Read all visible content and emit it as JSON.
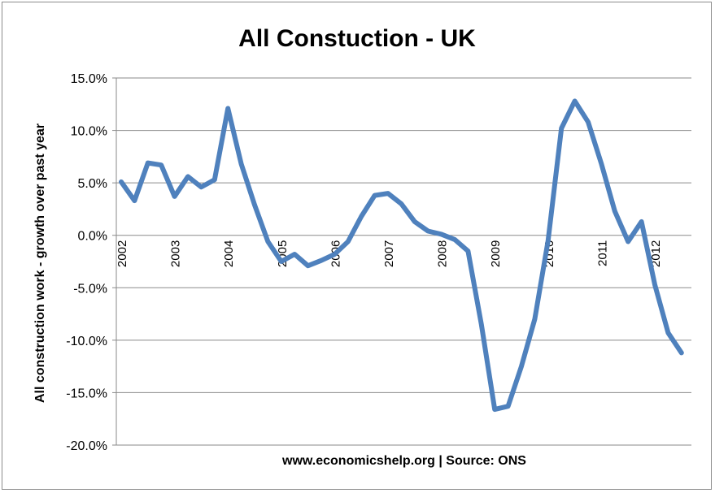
{
  "chart_data": {
    "type": "line",
    "title": "All Constuction - UK",
    "xlabel": "www.economicshelp.org | Source: ONS",
    "ylabel": "All construction work - growth over past year",
    "ylim": [
      -20,
      15
    ],
    "ytick_step": 5,
    "y_ticks": [
      {
        "value": 15,
        "label": "15.0%"
      },
      {
        "value": 10,
        "label": "10.0%"
      },
      {
        "value": 5,
        "label": "5.0%"
      },
      {
        "value": 0,
        "label": "0.0%"
      },
      {
        "value": -5,
        "label": "-5.0%"
      },
      {
        "value": -10,
        "label": "-10.0%"
      },
      {
        "value": -15,
        "label": "-15.0%"
      },
      {
        "value": -20,
        "label": "-20.0%"
      }
    ],
    "x_ticks": [
      {
        "index": 0,
        "label": "2002"
      },
      {
        "index": 4,
        "label": "2003"
      },
      {
        "index": 8,
        "label": "2004"
      },
      {
        "index": 12,
        "label": "2005"
      },
      {
        "index": 16,
        "label": "2006"
      },
      {
        "index": 20,
        "label": "2007"
      },
      {
        "index": 24,
        "label": "2008"
      },
      {
        "index": 28,
        "label": "2009"
      },
      {
        "index": 32,
        "label": "2010"
      },
      {
        "index": 36,
        "label": "2011"
      },
      {
        "index": 40,
        "label": "2012"
      }
    ],
    "grid": true,
    "series": [
      {
        "color": "#4f81bd",
        "values": [
          5.1,
          3.3,
          6.9,
          6.7,
          3.7,
          5.6,
          4.6,
          5.3,
          12.1,
          6.8,
          2.9,
          -0.6,
          -2.5,
          -1.8,
          -2.9,
          -2.4,
          -1.8,
          -0.6,
          1.8,
          3.8,
          4.0,
          3.0,
          1.3,
          0.4,
          0.1,
          -0.4,
          -1.5,
          -8.5,
          -16.6,
          -16.3,
          -12.5,
          -8.0,
          -0.5,
          10.2,
          12.8,
          10.8,
          6.8,
          2.3,
          -0.6,
          1.3,
          -4.7,
          -9.3,
          -11.2
        ]
      }
    ]
  }
}
